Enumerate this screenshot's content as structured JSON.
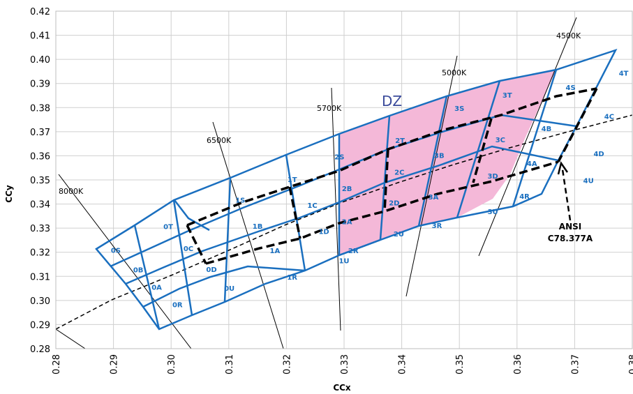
{
  "chart_data": {
    "type": "scatter",
    "title": "",
    "xlabel": "CCx",
    "ylabel": "CCy",
    "xlim": [
      0.28,
      0.38
    ],
    "ylim": [
      0.28,
      0.42
    ],
    "x_ticks": [
      "0.28",
      "0.29",
      "0.30",
      "0.31",
      "0.32",
      "0.33",
      "0.34",
      "0.35",
      "0.36",
      "0.37",
      "0.38"
    ],
    "y_ticks": [
      "0.28",
      "0.29",
      "0.30",
      "0.31",
      "0.32",
      "0.33",
      "0.34",
      "0.35",
      "0.36",
      "0.37",
      "0.38",
      "0.39",
      "0.40",
      "0.41",
      "0.42"
    ],
    "grid": true,
    "highlight_color": "#f4b8d8",
    "bin_line_color": "#1a6fbf",
    "grid_color": "#cfcfcf",
    "bins": [
      {
        "label": "0S",
        "x": 0.2904,
        "y": 0.3198
      },
      {
        "label": "0T",
        "x": 0.2995,
        "y": 0.3296
      },
      {
        "label": "0B",
        "x": 0.2943,
        "y": 0.3117
      },
      {
        "label": "0C",
        "x": 0.303,
        "y": 0.3205
      },
      {
        "label": "0A",
        "x": 0.2975,
        "y": 0.3045
      },
      {
        "label": "0D",
        "x": 0.307,
        "y": 0.3118
      },
      {
        "label": "0R",
        "x": 0.3011,
        "y": 0.2972
      },
      {
        "label": "0U",
        "x": 0.3101,
        "y": 0.304
      },
      {
        "label": "1S",
        "x": 0.312,
        "y": 0.3406
      },
      {
        "label": "1T",
        "x": 0.321,
        "y": 0.3491
      },
      {
        "label": "1B",
        "x": 0.315,
        "y": 0.3297
      },
      {
        "label": "1C",
        "x": 0.3245,
        "y": 0.3385
      },
      {
        "label": "1A",
        "x": 0.318,
        "y": 0.3196
      },
      {
        "label": "1D",
        "x": 0.3265,
        "y": 0.3276
      },
      {
        "label": "1R",
        "x": 0.321,
        "y": 0.3087
      },
      {
        "label": "1U",
        "x": 0.33,
        "y": 0.3155
      },
      {
        "label": "2S",
        "x": 0.3292,
        "y": 0.3585
      },
      {
        "label": "2T",
        "x": 0.3397,
        "y": 0.3654
      },
      {
        "label": "2B",
        "x": 0.3305,
        "y": 0.3453
      },
      {
        "label": "2C",
        "x": 0.3396,
        "y": 0.3521
      },
      {
        "label": "2A",
        "x": 0.3305,
        "y": 0.3317
      },
      {
        "label": "2D",
        "x": 0.3387,
        "y": 0.3395
      },
      {
        "label": "2R",
        "x": 0.3316,
        "y": 0.3197
      },
      {
        "label": "2U",
        "x": 0.3395,
        "y": 0.3265
      },
      {
        "label": "3S",
        "x": 0.35,
        "y": 0.3787
      },
      {
        "label": "3T",
        "x": 0.3583,
        "y": 0.3842
      },
      {
        "label": "3B",
        "x": 0.3465,
        "y": 0.3591
      },
      {
        "label": "3C",
        "x": 0.3571,
        "y": 0.3656
      },
      {
        "label": "3A",
        "x": 0.3455,
        "y": 0.3419
      },
      {
        "label": "3D",
        "x": 0.3558,
        "y": 0.3506
      },
      {
        "label": "3R",
        "x": 0.3461,
        "y": 0.3301
      },
      {
        "label": "3U",
        "x": 0.3558,
        "y": 0.3358
      },
      {
        "label": "4S",
        "x": 0.3693,
        "y": 0.3873
      },
      {
        "label": "4T",
        "x": 0.3785,
        "y": 0.3932
      },
      {
        "label": "4B",
        "x": 0.3651,
        "y": 0.3703
      },
      {
        "label": "4C",
        "x": 0.376,
        "y": 0.3753
      },
      {
        "label": "4A",
        "x": 0.3626,
        "y": 0.3558
      },
      {
        "label": "4D",
        "x": 0.3742,
        "y": 0.3598
      },
      {
        "label": "4R",
        "x": 0.3613,
        "y": 0.3422
      },
      {
        "label": "4U",
        "x": 0.3724,
        "y": 0.3487
      }
    ],
    "cct_labels": [
      "8000K",
      "6500K",
      "5700K",
      "5000K",
      "4500K"
    ],
    "annotations": [
      "DZ",
      "ANSI",
      "C78.377A"
    ]
  }
}
